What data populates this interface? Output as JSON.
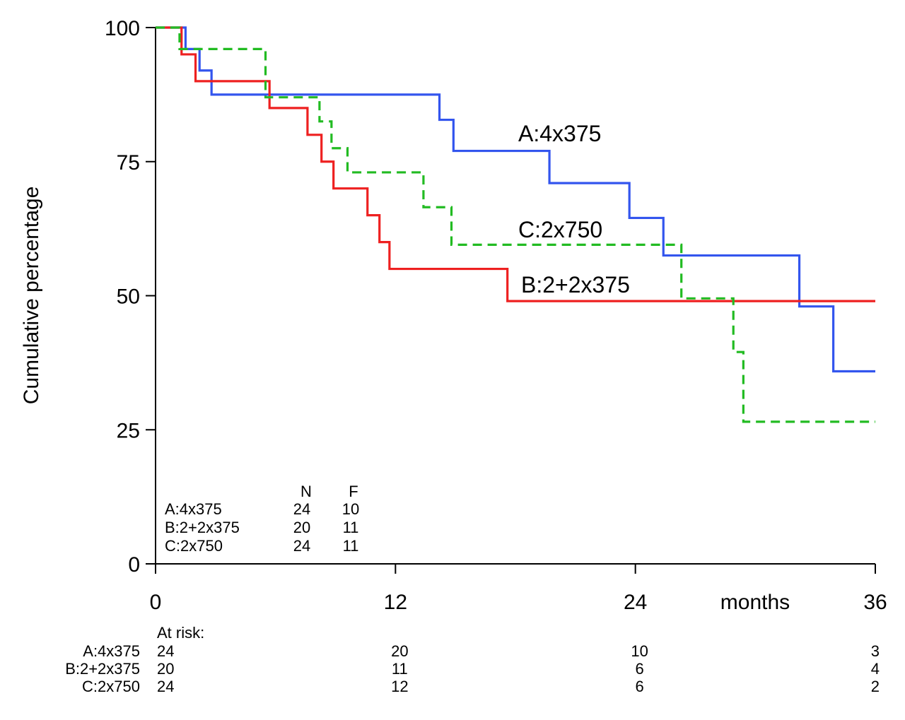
{
  "chart_data": {
    "type": "line",
    "subtype": "kaplan-meier step curves",
    "title": "",
    "xlabel": "months",
    "ylabel": "Cumulative percentage",
    "xlim": [
      0,
      36
    ],
    "ylim": [
      0,
      100
    ],
    "x_ticks": [
      0,
      12,
      24,
      36
    ],
    "y_ticks": [
      0,
      25,
      50,
      75,
      100
    ],
    "series": [
      {
        "name": "A:4x375",
        "color": "#3355ee",
        "dash": "solid",
        "x": [
          0,
          1.5,
          2.2,
          2.8,
          14.2,
          14.9,
          19.7,
          23.7,
          25.4,
          32.2,
          33.9,
          36
        ],
        "y": [
          100,
          96,
          92,
          87.5,
          82.8,
          77,
          71,
          64.5,
          57.5,
          48,
          35.9,
          35.9
        ]
      },
      {
        "name": "B:2+2x375",
        "color": "#ee2020",
        "dash": "solid",
        "x": [
          0,
          1.3,
          2.0,
          5.7,
          7.6,
          8.3,
          8.9,
          10.6,
          11.2,
          11.7,
          17.6,
          36
        ],
        "y": [
          100,
          95,
          90,
          85,
          80,
          75,
          70,
          65,
          60,
          55,
          49,
          49
        ]
      },
      {
        "name": "C:2x750",
        "color": "#22bb22",
        "dash": "dashed",
        "x": [
          0,
          1.2,
          5.5,
          8.2,
          8.8,
          9.6,
          13.4,
          14.8,
          26.3,
          28.9,
          29.4,
          36
        ],
        "y": [
          100,
          96,
          87,
          82.5,
          77.5,
          73,
          66.5,
          59.5,
          49.5,
          39.5,
          26.5,
          26.5
        ]
      }
    ],
    "summary_table": {
      "headers": [
        "N",
        "F"
      ],
      "rows": [
        {
          "label": "A:4x375",
          "N": "24",
          "F": "10"
        },
        {
          "label": "B:2+2x375",
          "N": "20",
          "F": "11"
        },
        {
          "label": "C:2x750",
          "N": "24",
          "F": "11"
        }
      ]
    },
    "at_risk": {
      "title": "At risk:",
      "times": [
        0,
        12,
        24,
        36
      ],
      "rows": [
        {
          "label": "A:4x375",
          "values": [
            "24",
            "20",
            "10",
            "3"
          ]
        },
        {
          "label": "B:2+2x375",
          "values": [
            "20",
            "11",
            "6",
            "4"
          ]
        },
        {
          "label": "C:2x750",
          "values": [
            "24",
            "12",
            "6",
            "2"
          ]
        }
      ]
    }
  }
}
